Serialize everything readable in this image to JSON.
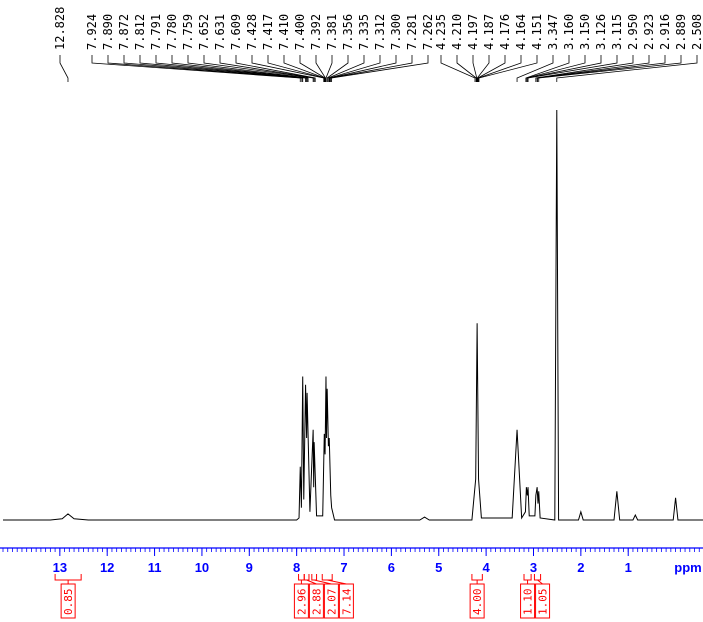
{
  "chart_data": {
    "type": "line",
    "x": [
      14.2,
      13.2,
      12.95,
      12.828,
      12.7,
      12.4,
      8.0,
      7.95,
      7.924,
      7.9,
      7.872,
      7.85,
      7.812,
      7.79,
      7.78,
      7.72,
      7.652,
      7.64,
      7.631,
      7.58,
      7.45,
      7.417,
      7.4,
      7.381,
      7.37,
      7.356,
      7.33,
      7.312,
      7.28,
      7.262,
      7.2,
      5.4,
      5.3,
      5.2,
      4.3,
      4.22,
      4.19,
      4.16,
      4.1,
      3.45,
      3.347,
      3.25,
      3.17,
      3.15,
      3.13,
      3.115,
      3.09,
      2.97,
      2.95,
      2.923,
      2.905,
      2.889,
      2.86,
      2.55,
      2.508,
      2.47,
      2.05,
      2.0,
      1.95,
      1.3,
      1.24,
      1.18,
      0.9,
      0.85,
      0.8,
      0.05,
      0.0,
      -0.05,
      -0.6
    ],
    "values": [
      0,
      0,
      0.3,
      1.5,
      0.3,
      0,
      0,
      0.5,
      13,
      3,
      35,
      5,
      33,
      20,
      31,
      2,
      22,
      8,
      19,
      1,
      1,
      21,
      16,
      35,
      20,
      32,
      18,
      20,
      6,
      3,
      0,
      0,
      0.7,
      0,
      0,
      10,
      48,
      10,
      0.5,
      0.5,
      22,
      0.5,
      2,
      8,
      6,
      8,
      1,
      1,
      6,
      8,
      4,
      7,
      0.5,
      0,
      100,
      0,
      0,
      2,
      0,
      0,
      7,
      0,
      0,
      1.2,
      0,
      0,
      5.4,
      0,
      0
    ],
    "color": "#000000",
    "xlim": [
      14.2,
      -0.6
    ],
    "ylim": [
      0,
      100
    ],
    "xticks": [
      13,
      12,
      11,
      10,
      9,
      8,
      7,
      6,
      5,
      4,
      3,
      2,
      1
    ],
    "xlabel": "ppm",
    "axis_color": "#0000ff",
    "minor_xtick_step": 0.1,
    "peak_labels": [
      12.828,
      7.924,
      {
        "value": 7.89,
        "label": "7.890"
      },
      7.872,
      7.812,
      7.791,
      {
        "value": 7.78,
        "label": "7.780"
      },
      7.759,
      7.652,
      7.631,
      7.609,
      7.428,
      7.417,
      {
        "value": 7.41,
        "label": "7.410"
      },
      {
        "value": 7.4,
        "label": "7.400"
      },
      7.392,
      7.381,
      7.356,
      7.335,
      7.312,
      {
        "value": 7.3,
        "label": "7.300"
      },
      7.281,
      7.262,
      4.235,
      {
        "value": 4.21,
        "label": "4.210"
      },
      4.197,
      4.187,
      4.176,
      4.164,
      4.151,
      3.347,
      {
        "value": 3.16,
        "label": "3.160"
      },
      {
        "value": 3.15,
        "label": "3.150"
      },
      3.126,
      3.115,
      {
        "value": 2.95,
        "label": "2.950"
      },
      2.923,
      2.916,
      2.889,
      2.508
    ],
    "integrals": {
      "ranges": [
        [
          13.1,
          12.55
        ],
        [
          7.96,
          7.84
        ],
        [
          7.84,
          7.74
        ],
        [
          7.68,
          7.58
        ],
        [
          7.46,
          7.25
        ],
        [
          4.3,
          4.08
        ],
        [
          3.2,
          3.05
        ],
        [
          2.98,
          2.85
        ]
      ],
      "values": [
        0.85,
        2.96,
        2.88,
        2.07,
        7.14,
        4,
        1.1,
        1.05
      ],
      "value_labels": [
        "0.85",
        "2.96",
        "2.88",
        "2.07",
        "7.14",
        "4.00",
        "1.10",
        "1.05"
      ],
      "color": "#ff0000"
    }
  }
}
